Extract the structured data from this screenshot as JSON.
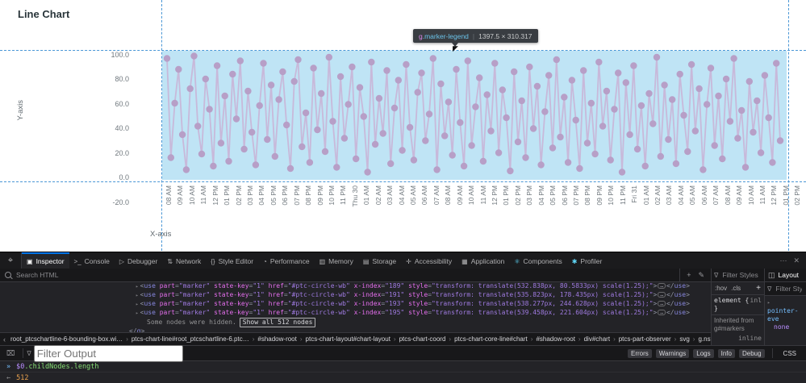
{
  "page": {
    "title": "Line Chart"
  },
  "tooltip": {
    "tag": "g",
    "class": ".marker-legend",
    "separator": "|",
    "dimensions": "1397.5 × 310.317"
  },
  "chart_data": {
    "type": "line",
    "title": "Line Chart",
    "xlabel": "X-axis",
    "ylabel": "Y-axis",
    "ylim": [
      -20,
      100
    ],
    "y_ticks": [
      "100.0",
      "80.0",
      "60.0",
      "40.0",
      "20.0",
      "0.0",
      "-20.0"
    ],
    "x_tick_labels": [
      "08 AM",
      "09 AM",
      "10 AM",
      "11 AM",
      "12 PM",
      "01 PM",
      "02 PM",
      "03 PM",
      "04 PM",
      "05 PM",
      "06 PM",
      "07 PM",
      "08 PM",
      "09 PM",
      "10 PM",
      "11 PM",
      "Thu 30",
      "01 AM",
      "02 AM",
      "03 AM",
      "04 AM",
      "05 AM",
      "06 AM",
      "07 AM",
      "08 AM",
      "09 AM",
      "10 AM",
      "11 AM",
      "12 PM",
      "01 PM",
      "02 PM",
      "03 PM",
      "04 PM",
      "05 PM",
      "06 PM",
      "07 PM",
      "08 PM",
      "09 PM",
      "10 PM",
      "11 PM",
      "Fri 31",
      "01 AM",
      "02 AM",
      "03 AM",
      "04 AM",
      "05 AM",
      "06 AM",
      "07 AM",
      "08 AM",
      "09 AM",
      "10 AM",
      "11 AM",
      "12 PM",
      "01 PM",
      "02 PM"
    ],
    "note": "dense oscillating series highlighted by inspector; element g.marker-legend holds 512 marker nodes",
    "marker_color": "#b79fc7",
    "line_color": "#c9b4d7",
    "highlight_fill": "#bfe4f5",
    "values": [
      97,
      15,
      60,
      88,
      34,
      5,
      72,
      99,
      41,
      18,
      80,
      55,
      8,
      91,
      27,
      66,
      12,
      84,
      47,
      95,
      22,
      70,
      36,
      9,
      58,
      93,
      30,
      75,
      16,
      63,
      86,
      42,
      6,
      78,
      96,
      24,
      52,
      11,
      89,
      38,
      68,
      20,
      98,
      45,
      7,
      82,
      31,
      59,
      90,
      14,
      73,
      49,
      3,
      94,
      26,
      64,
      35,
      87,
      10,
      56,
      79,
      21,
      92,
      40,
      13,
      69,
      85,
      29,
      51,
      97,
      5,
      76,
      33,
      61,
      17,
      88,
      44,
      8,
      95,
      25,
      57,
      81,
      12,
      67,
      37,
      93,
      19,
      71,
      48,
      4,
      86,
      28,
      62,
      15,
      90,
      39,
      74,
      9,
      53,
      83,
      23,
      96,
      32,
      65,
      11,
      79,
      46,
      6,
      87,
      27,
      60,
      18,
      94,
      41,
      70,
      13,
      55,
      85,
      3,
      77,
      34,
      91,
      22,
      58,
      8,
      68,
      43,
      98,
      16,
      75,
      30,
      63,
      10,
      84,
      50,
      20,
      92,
      37,
      72,
      5,
      59,
      89,
      25,
      66,
      14,
      80,
      45,
      97,
      31,
      54,
      7,
      78,
      36,
      62,
      19,
      83,
      48,
      11,
      93,
      29
    ]
  },
  "devtools": {
    "toolbar": {
      "pick_glyph": "⌖",
      "more_glyph": "⋯",
      "close_glyph": "✕",
      "tabs": [
        {
          "label": "Inspector",
          "icon": "inspector-icon",
          "glyph": "▣",
          "active": true
        },
        {
          "label": "Console",
          "icon": "console-icon",
          "glyph": ">_",
          "active": false
        },
        {
          "label": "Debugger",
          "icon": "debugger-icon",
          "glyph": "▷",
          "active": false
        },
        {
          "label": "Network",
          "icon": "network-icon",
          "glyph": "⇅",
          "active": false
        },
        {
          "label": "Style Editor",
          "icon": "style-editor-icon",
          "glyph": "{}",
          "active": false
        },
        {
          "label": "Performance",
          "icon": "performance-icon",
          "glyph": "◔",
          "active": false
        },
        {
          "label": "Memory",
          "icon": "memory-icon",
          "glyph": "▥",
          "active": false
        },
        {
          "label": "Storage",
          "icon": "storage-icon",
          "glyph": "▤",
          "active": false
        },
        {
          "label": "Accessibility",
          "icon": "accessibility-icon",
          "glyph": "✛",
          "active": false
        },
        {
          "label": "Application",
          "icon": "application-icon",
          "glyph": "▦",
          "active": false
        },
        {
          "label": "Components",
          "icon": "components-icon",
          "glyph": "⚛",
          "active": false,
          "color": "#61dafb"
        },
        {
          "label": "Profiler",
          "icon": "profiler-icon",
          "glyph": "✱",
          "active": false,
          "color": "#61dafb"
        }
      ]
    },
    "search": {
      "placeholder": "Search HTML",
      "add_glyph": "+",
      "eyedropper_glyph": "✎"
    },
    "markup": {
      "expander_glyph": "▸",
      "tag": "use",
      "common_attrs": [
        [
          "part",
          "marker"
        ],
        [
          "state-key",
          "1"
        ],
        [
          "href",
          "#ptc-circle-wb"
        ]
      ],
      "nodes": [
        {
          "x_index": "189",
          "style": "transform: translate(532.838px, 80.5833px) scale(1.25);"
        },
        {
          "x_index": "191",
          "style": "transform: translate(535.823px, 178.435px) scale(1.25);"
        },
        {
          "x_index": "193",
          "style": "transform: translate(538.277px, 244.628px) scale(1.25);"
        },
        {
          "x_index": "195",
          "style": "transform: translate(539.458px, 221.604px) scale(1.25);"
        }
      ],
      "ellipsis": "…",
      "hidden_note": "Some nodes were hidden.",
      "show_all_label": "Show all 512 nodes",
      "closing_tag_open": "</",
      "closing_tag_name": "g",
      "closing_tag_close": ">"
    },
    "breadcrumb": {
      "back_glyph": "‹",
      "forward_glyph": "›",
      "items": [
        "root_ptcschartline-6-bounding-box.wi…",
        "ptcs-chart-line#root_ptcschartline-6.ptc…",
        "#shadow-root",
        "ptcs-chart-layout#chart-layout",
        "ptcs-chart-coord",
        "ptcs-chart-core-line#chart",
        "#shadow-root",
        "div#chart",
        "ptcs-part-observer",
        "svg",
        "g.nstack",
        "g#markers",
        "g.marl"
      ],
      "selected_index": 12
    },
    "rules": {
      "filter_placeholder": "Filter Styles",
      "pseudo_toggle": ":hov",
      "class_toggle": ".cls",
      "add_rule": "+",
      "selector": "element",
      "brace_open": "{",
      "brace_close": "}",
      "source_truncated": "inl",
      "inherited_line1": "Inherited from",
      "inherited_line2": "g#markers",
      "source_full": "inline"
    },
    "sidebar": {
      "tab_icon_glyph": "◫",
      "tab_label": "Layout",
      "filter_placeholder": "Filter Styles",
      "expander_glyph": "▸",
      "property": "pointer-eve",
      "value": "none"
    },
    "console": {
      "trash_glyph": "⌧",
      "filter_placeholder": "Filter Output",
      "filter_buttons": [
        "Errors",
        "Warnings",
        "Logs",
        "Info",
        "Debug"
      ],
      "css_button": "CSS",
      "prompt_glyph": "»",
      "input_var": "$0",
      "input_rest": ".childNodes.length",
      "result_arrow": "←",
      "result_value": "512"
    }
  }
}
